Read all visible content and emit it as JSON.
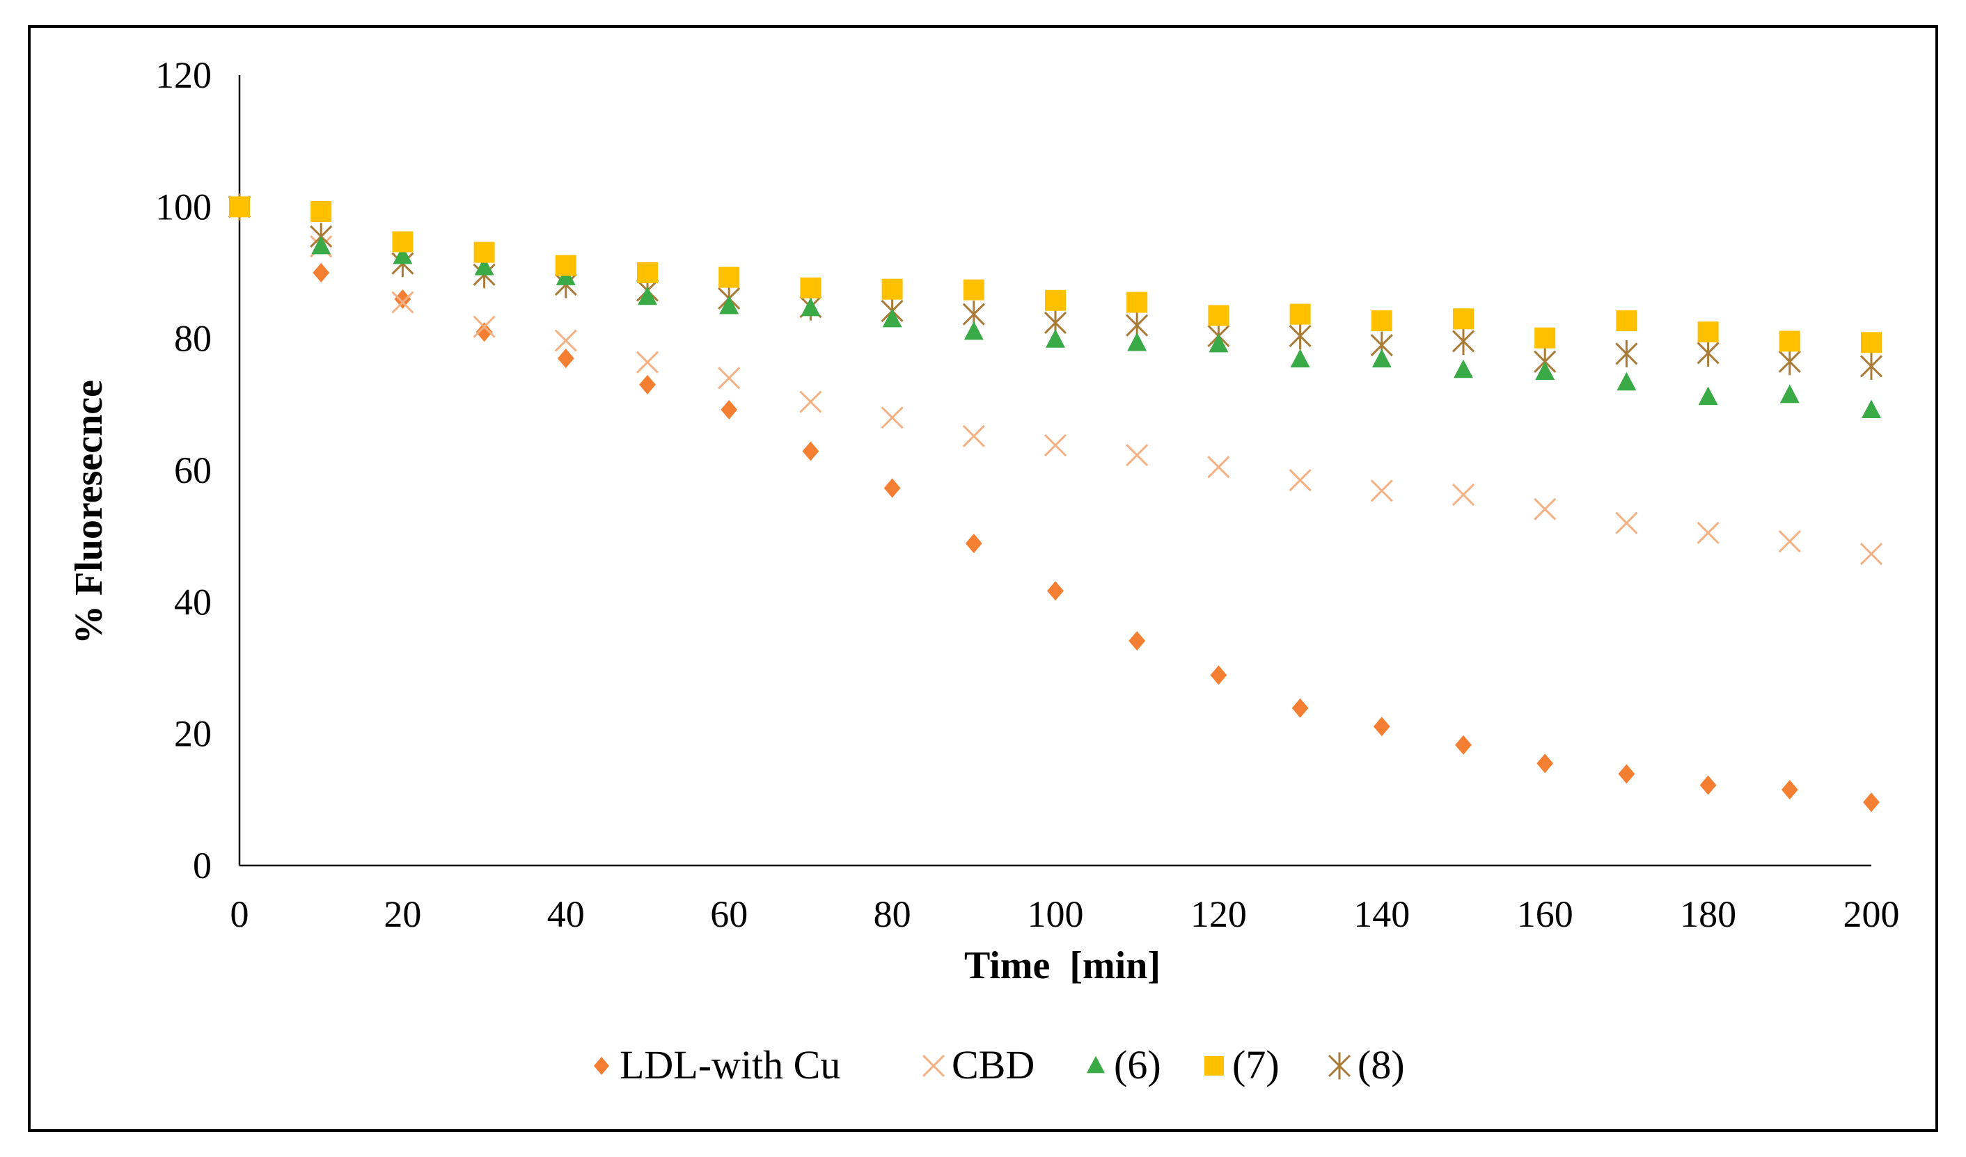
{
  "chart_data": {
    "type": "scatter",
    "xlabel": "Time  [min]",
    "ylabel": "% Fluoresecnce",
    "xlim": [
      0,
      200
    ],
    "ylim": [
      0,
      120
    ],
    "xticks": [
      0,
      20,
      40,
      60,
      80,
      100,
      120,
      140,
      160,
      180,
      200
    ],
    "yticks": [
      0,
      20,
      40,
      60,
      80,
      100,
      120
    ],
    "grid": false,
    "legend_position": "bottom",
    "x": [
      0,
      10,
      20,
      30,
      40,
      50,
      60,
      70,
      80,
      90,
      100,
      110,
      120,
      130,
      140,
      150,
      160,
      170,
      180,
      190,
      200
    ],
    "series": [
      {
        "name": "LDL-with Cu",
        "marker": "diamond",
        "color": "#F47F32",
        "values": [
          100,
          90,
          86,
          81,
          77,
          73,
          69.2,
          62.9,
          57.3,
          48.9,
          41.7,
          34.1,
          28.9,
          23.9,
          21.1,
          18.3,
          15.5,
          13.9,
          12.2,
          11.5,
          9.6
        ]
      },
      {
        "name": "CBD",
        "marker": "x",
        "color": "#F4B183",
        "values": [
          100,
          94,
          85.5,
          81.8,
          79.7,
          76.4,
          74,
          70.4,
          68,
          65.2,
          63.8,
          62.3,
          60.5,
          58.5,
          56.9,
          56.3,
          54.1,
          52,
          50.5,
          49.2,
          47.3
        ]
      },
      {
        "name": "(6)",
        "marker": "triangle",
        "color": "#3AAA46",
        "values": [
          100,
          94,
          92.5,
          90.8,
          89.3,
          86.3,
          84.9,
          84.6,
          82.9,
          81,
          79.8,
          79.3,
          79.1,
          76.8,
          76.8,
          75.2,
          74.9,
          73.3,
          71.1,
          71.4,
          69.1
        ]
      },
      {
        "name": "(7)",
        "marker": "square",
        "color": "#FFC000",
        "values": [
          100,
          99.3,
          94.7,
          93.1,
          91.1,
          90,
          89.3,
          87.7,
          87.5,
          87.4,
          85.8,
          85.5,
          83.5,
          83.7,
          82.7,
          83,
          80.1,
          82.7,
          81,
          79.6,
          79.4
        ]
      },
      {
        "name": "(8)",
        "marker": "star",
        "color": "#A97B37",
        "values": [
          100,
          95.5,
          91.4,
          89.7,
          88.2,
          87.3,
          86.1,
          84.8,
          84.2,
          83.7,
          82.4,
          82,
          80.4,
          80.4,
          79,
          79.6,
          76.5,
          77.7,
          77.8,
          76.5,
          75.8
        ]
      }
    ]
  }
}
